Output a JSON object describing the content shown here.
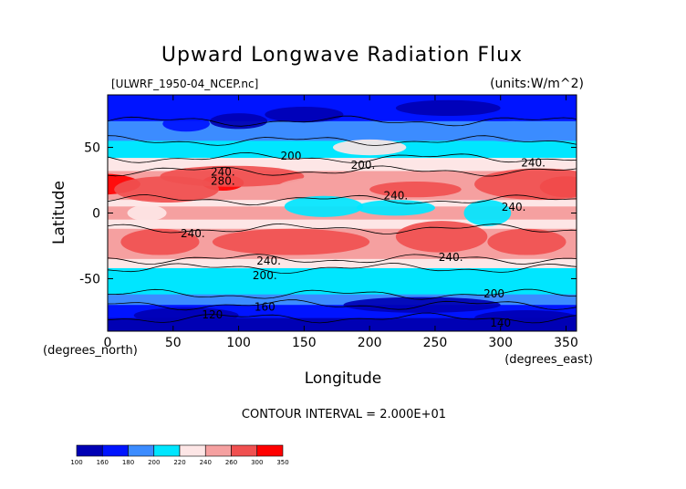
{
  "chart_data": {
    "type": "heatmap",
    "title": "Upward Longwave Radiation Flux",
    "subtitle_left": "[ULWRF_1950-04_NCEP.nc]",
    "subtitle_right": "(units:W/m^2)",
    "xlabel": "Longitude",
    "ylabel": "Latitude",
    "x_unit_note": "(degrees_east)",
    "y_unit_note": "(degrees_north)",
    "x_ticks": [
      0,
      50,
      100,
      150,
      200,
      250,
      300,
      350
    ],
    "y_ticks": [
      -50,
      0,
      50
    ],
    "xlim": [
      0,
      358
    ],
    "ylim": [
      -90,
      90
    ],
    "contour_interval_text": "CONTOUR INTERVAL = 2.000E+01",
    "contour_labels": [
      {
        "text": "200",
        "lon": 140,
        "lat": 43
      },
      {
        "text": "200.",
        "lon": 195,
        "lat": 36
      },
      {
        "text": "240.",
        "lon": 88,
        "lat": 31
      },
      {
        "text": "280.",
        "lon": 88,
        "lat": 24
      },
      {
        "text": "240.",
        "lon": 220,
        "lat": 13
      },
      {
        "text": "240.",
        "lon": 310,
        "lat": 4
      },
      {
        "text": "240.",
        "lon": 325,
        "lat": 38
      },
      {
        "text": "240.",
        "lon": 65,
        "lat": -16
      },
      {
        "text": "240.",
        "lon": 123,
        "lat": -37
      },
      {
        "text": "200.",
        "lon": 120,
        "lat": -48
      },
      {
        "text": "240.",
        "lon": 262,
        "lat": -34
      },
      {
        "text": "200",
        "lon": 295,
        "lat": -62
      },
      {
        "text": "160",
        "lon": 120,
        "lat": -72
      },
      {
        "text": "120",
        "lon": 80,
        "lat": -78
      },
      {
        "text": "140",
        "lon": 300,
        "lat": -84
      }
    ],
    "colorbar": {
      "levels": [
        "100",
        "160",
        "180",
        "200",
        "220",
        "240",
        "260",
        "300",
        "350"
      ],
      "colors": [
        "#0000b4",
        "#0014ff",
        "#3c8cff",
        "#00e6ff",
        "#fde6e6",
        "#f5a0a0",
        "#f05050",
        "#ff0000"
      ]
    }
  }
}
